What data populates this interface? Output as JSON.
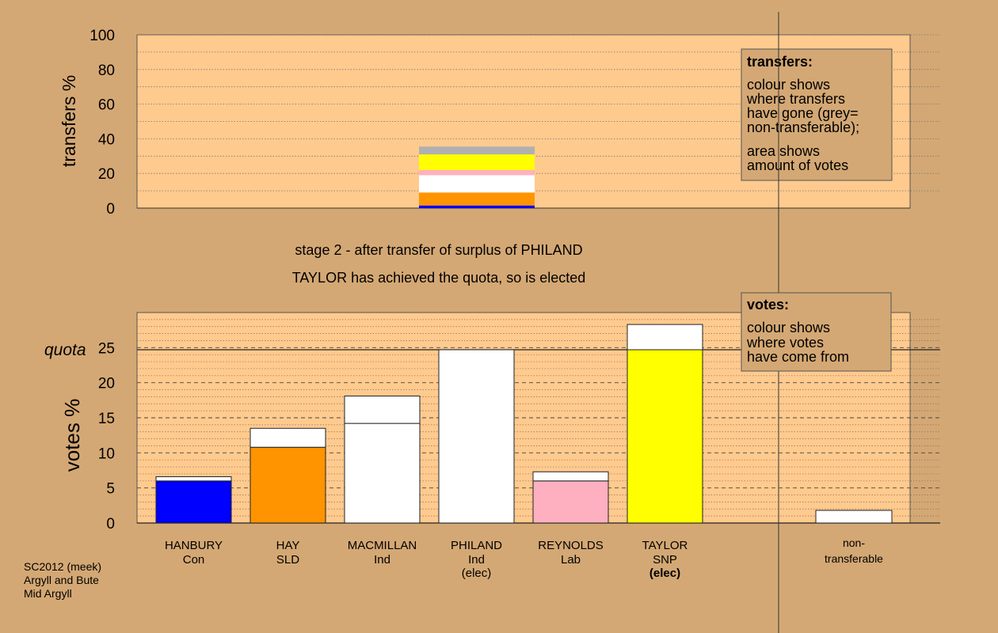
{
  "colors": {
    "background": "#d4a874",
    "panel": "#ffca8e",
    "legend_box": "#d4a874",
    "HANBURY": "#0000ff",
    "HAY": "#ff9400",
    "MACMILLAN": "#ffffff",
    "PHILAND": "#ffffff",
    "REYNOLDS": "#ffb0c0",
    "TAYLOR": "#ffff00",
    "nontransferable": "#b0b0b0"
  },
  "chart_data": [
    {
      "type": "bar",
      "name": "transfers",
      "ylabel": "transfers %",
      "ylim": [
        0,
        100
      ],
      "yticks": [
        "0",
        "20",
        "40",
        "60",
        "80",
        "100"
      ],
      "stacked_bar": {
        "category": "PHILAND",
        "segments": [
          {
            "source": "HANBURY",
            "value": 1.5
          },
          {
            "source": "HAY",
            "value": 7.5
          },
          {
            "source": "MACMILLAN",
            "value": 10.0
          },
          {
            "source": "REYNOLDS",
            "value": 3.0
          },
          {
            "source": "TAYLOR",
            "value": 9.0
          },
          {
            "source": "non-transferable",
            "value": 4.5
          }
        ]
      },
      "legend": {
        "title": "transfers:",
        "lines_a": [
          "colour shows",
          "where transfers",
          "have gone (grey=",
          "non-transferable);"
        ],
        "lines_b": [
          "area shows",
          "amount of votes"
        ]
      }
    },
    {
      "type": "bar",
      "name": "votes",
      "ylabel": "votes %",
      "ylim": [
        0,
        30
      ],
      "yticks": [
        "0",
        "5",
        "10",
        "15",
        "20",
        "25"
      ],
      "quota": 24.7,
      "quota_label": "quota",
      "categories": [
        {
          "name": "HANBURY",
          "party": "Con",
          "note": "",
          "first": 6.0,
          "transfer": 0.6
        },
        {
          "name": "HAY",
          "party": "SLD",
          "note": "",
          "first": 10.8,
          "transfer": 2.7
        },
        {
          "name": "MACMILLAN",
          "party": "Ind",
          "note": "",
          "first": 14.2,
          "transfer": 3.9
        },
        {
          "name": "PHILAND",
          "party": "Ind",
          "note": "(elec)",
          "first": 24.7,
          "transfer": 0
        },
        {
          "name": "REYNOLDS",
          "party": "Lab",
          "note": "",
          "first": 6.0,
          "transfer": 1.3
        },
        {
          "name": "TAYLOR",
          "party": "SNP",
          "note": "(elec)",
          "first": 24.7,
          "transfer": 3.6
        }
      ],
      "nontransferable": {
        "label_1": "non-",
        "label_2": "transferable",
        "value": 1.8
      },
      "legend": {
        "title": "votes:",
        "lines": [
          "colour shows",
          "where votes",
          "have come from"
        ]
      }
    }
  ],
  "stage_text": "stage 2 - after transfer of surplus of PHILAND",
  "status_text": "TAYLOR has achieved the quota, so is elected",
  "footer": {
    "line_1": "SC2012 (meek)",
    "line_2": "Argyll and Bute",
    "line_3": "Mid Argyll"
  }
}
